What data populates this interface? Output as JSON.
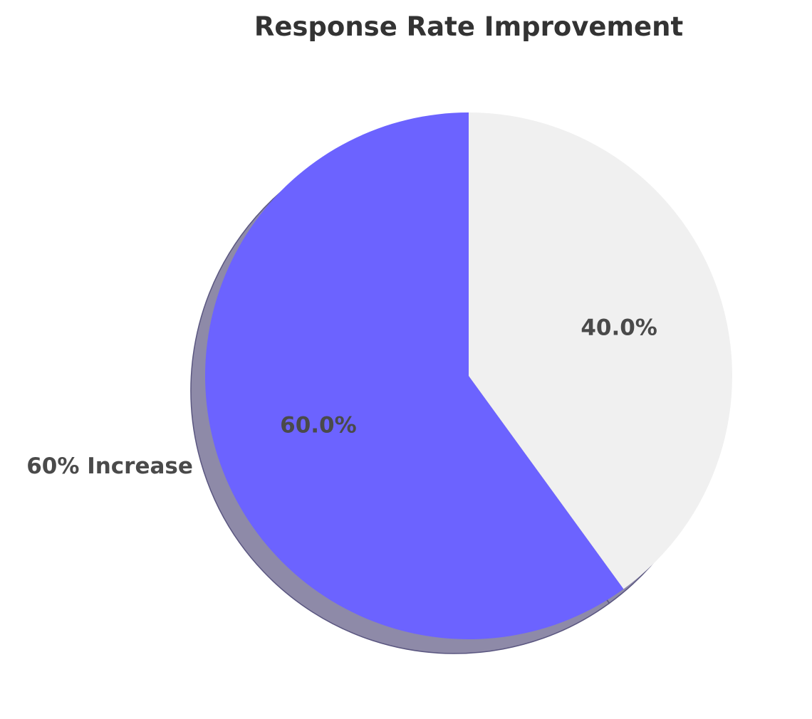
{
  "chart_data": {
    "type": "pie",
    "title": "Response Rate Improvement",
    "categories": [
      "60% Increase",
      ""
    ],
    "values": [
      60,
      40
    ],
    "percent_labels": [
      "60.0%",
      "40.0%"
    ],
    "colors": [
      "#6c63ff",
      "#f0f0f0"
    ],
    "shadow_color": "#8e8aa8",
    "title_color": "#333333",
    "label_color": "#4a4a4a",
    "start_angle_deg": 90,
    "direction": "counterclockwise",
    "shadow": true,
    "legend": "none"
  }
}
